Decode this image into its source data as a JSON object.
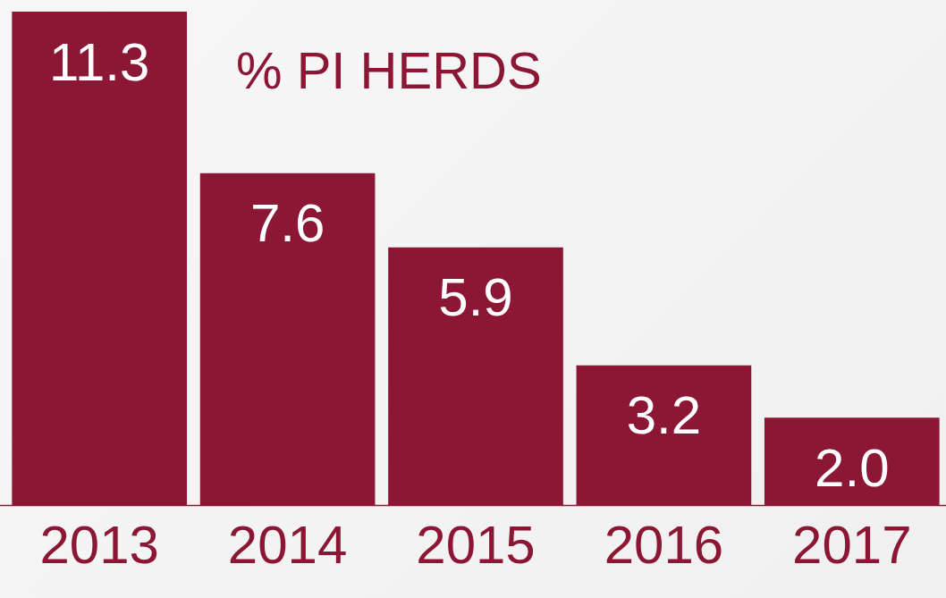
{
  "chart_data": {
    "type": "bar",
    "title": "% PI HERDS",
    "categories": [
      "2013",
      "2014",
      "2015",
      "2016",
      "2017"
    ],
    "values": [
      11.3,
      7.6,
      5.9,
      3.2,
      2.0
    ],
    "color": "#8b1734",
    "value_labels": [
      "11.3",
      "7.6",
      "5.9",
      "3.2",
      "2.0"
    ],
    "grid": false,
    "legend": false
  }
}
